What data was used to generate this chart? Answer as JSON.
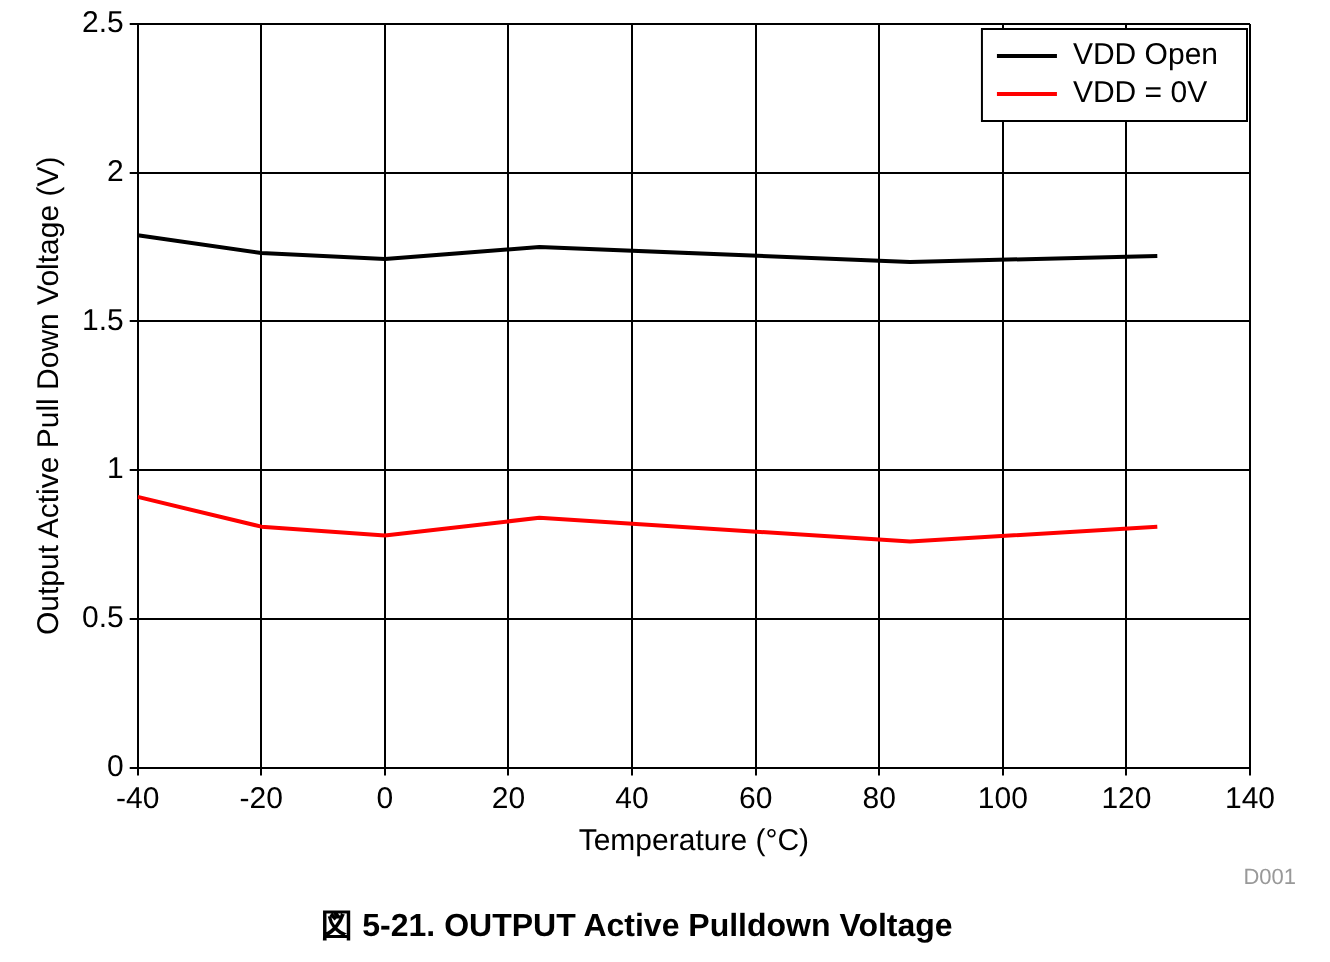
{
  "chart_data": {
    "type": "line",
    "title": "図 5-21. OUTPUT Active Pulldown Voltage",
    "xlabel": "Temperature (°C)",
    "ylabel": "Output Active Pull Down Voltage (V)",
    "x": [
      -40,
      -20,
      0,
      25,
      85,
      125
    ],
    "series": [
      {
        "name": "VDD Open",
        "color": "#000000",
        "values": [
          1.79,
          1.73,
          1.71,
          1.75,
          1.7,
          1.72
        ]
      },
      {
        "name": "VDD = 0V",
        "color": "#ff0000",
        "values": [
          0.91,
          0.81,
          0.78,
          0.84,
          0.76,
          0.81
        ]
      }
    ],
    "xlim": [
      -40,
      140
    ],
    "xticks": [
      -40,
      -20,
      0,
      20,
      40,
      60,
      80,
      100,
      120,
      140
    ],
    "ylim": [
      0,
      2.5
    ],
    "yticks": [
      0,
      0.5,
      1,
      1.5,
      2,
      2.5
    ],
    "grid": true,
    "legend": "top right",
    "marker": "none",
    "line_style": "solid",
    "annotations": [
      "D001"
    ]
  }
}
